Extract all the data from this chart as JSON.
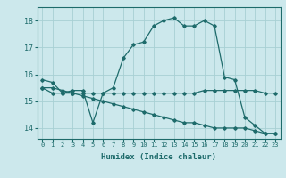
{
  "title": "",
  "xlabel": "Humidex (Indice chaleur)",
  "bg_color": "#cce8ec",
  "line_color": "#1e6b6b",
  "grid_color": "#a8d0d4",
  "x_ticks": [
    0,
    1,
    2,
    3,
    4,
    5,
    6,
    7,
    8,
    9,
    10,
    11,
    12,
    13,
    14,
    15,
    16,
    17,
    18,
    19,
    20,
    21,
    22,
    23
  ],
  "y_ticks": [
    14,
    15,
    16,
    17,
    18
  ],
  "xlim": [
    -0.5,
    23.5
  ],
  "ylim": [
    13.6,
    18.5
  ],
  "lines": [
    {
      "x": [
        0,
        1,
        2,
        3,
        4,
        5,
        6,
        7,
        8,
        9,
        10,
        11,
        12,
        13,
        14,
        15,
        16,
        17,
        18,
        19,
        20,
        21,
        22,
        23
      ],
      "y": [
        15.8,
        15.7,
        15.3,
        15.4,
        15.4,
        14.2,
        15.3,
        15.5,
        16.6,
        17.1,
        17.2,
        17.8,
        18.0,
        18.1,
        17.8,
        17.8,
        18.0,
        17.8,
        15.9,
        15.8,
        14.4,
        14.1,
        13.8,
        13.8
      ]
    },
    {
      "x": [
        0,
        1,
        2,
        3,
        4,
        5,
        6,
        7,
        8,
        9,
        10,
        11,
        12,
        13,
        14,
        15,
        16,
        17,
        18,
        19,
        20,
        21,
        22,
        23
      ],
      "y": [
        15.5,
        15.3,
        15.3,
        15.3,
        15.3,
        15.3,
        15.3,
        15.3,
        15.3,
        15.3,
        15.3,
        15.3,
        15.3,
        15.3,
        15.3,
        15.3,
        15.4,
        15.4,
        15.4,
        15.4,
        15.4,
        15.4,
        15.3,
        15.3
      ]
    },
    {
      "x": [
        0,
        1,
        2,
        3,
        4,
        5,
        6,
        7,
        8,
        9,
        10,
        11,
        12,
        13,
        14,
        15,
        16,
        17,
        18,
        19,
        20,
        21,
        22,
        23
      ],
      "y": [
        15.5,
        15.5,
        15.4,
        15.3,
        15.2,
        15.1,
        15.0,
        14.9,
        14.8,
        14.7,
        14.6,
        14.5,
        14.4,
        14.3,
        14.2,
        14.2,
        14.1,
        14.0,
        14.0,
        14.0,
        14.0,
        13.9,
        13.8,
        13.8
      ]
    }
  ]
}
